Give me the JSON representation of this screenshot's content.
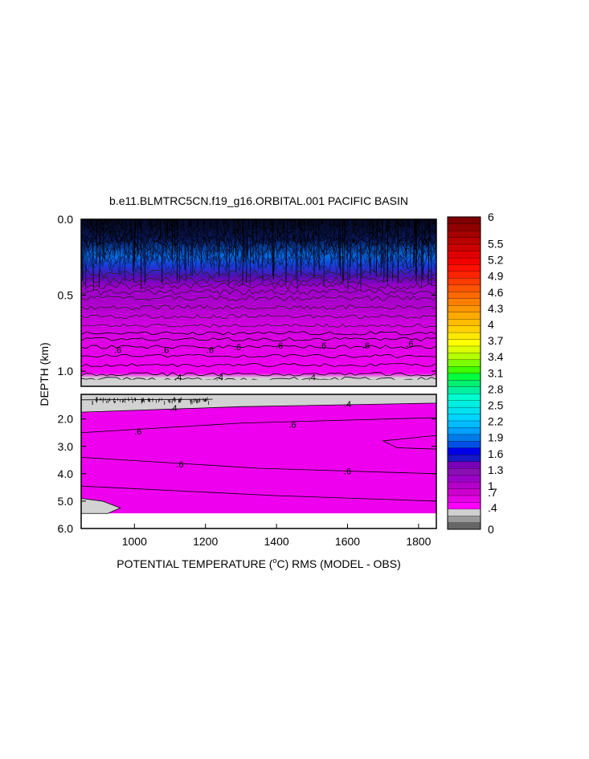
{
  "chart_data": {
    "type": "heatmap",
    "title": "b.e11.BLMTRC5CN.f19_g16.ORBITAL.001 PACIFIC BASIN",
    "xlabel_parts": [
      "POTENTIAL TEMPERATURE (",
      "o",
      "C) RMS (MODEL - OBS)"
    ],
    "ylabel": "DEPTH (km)",
    "x_range": [
      850,
      1850
    ],
    "x_ticks": [
      "1000",
      "1200",
      "1400",
      "1600",
      "1800"
    ],
    "x_tick_values": [
      1000,
      1200,
      1400,
      1600,
      1800
    ],
    "upper_panel": {
      "y_range": [
        0.0,
        1.1
      ],
      "y_ticks": [
        "0.0",
        "0.5",
        "1.0"
      ],
      "y_tick_values": [
        0.0,
        0.5,
        1.0
      ]
    },
    "lower_panel": {
      "y_range": [
        1.1,
        6.0
      ],
      "y_ticks": [
        "2.0",
        "3.0",
        "4.0",
        "5.0",
        "6.0"
      ],
      "y_tick_values": [
        2.0,
        3.0,
        4.0,
        5.0,
        6.0
      ]
    },
    "contour_labels_upper": [
      {
        "text": ".6",
        "x": 1087,
        "depth": 0.86
      },
      {
        "text": ".6",
        "x": 1213,
        "depth": 0.86
      },
      {
        "text": ".6",
        "x": 1290,
        "depth": 0.84
      },
      {
        "text": ".6",
        "x": 1408,
        "depth": 0.83
      },
      {
        "text": ".6",
        "x": 1530,
        "depth": 0.83
      },
      {
        "text": ".6",
        "x": 1652,
        "depth": 0.83
      },
      {
        "text": ".6",
        "x": 1775,
        "depth": 0.82
      },
      {
        "text": ".6",
        "x": 953,
        "depth": 0.86
      },
      {
        "text": ".4",
        "x": 1123,
        "depth": 1.04
      },
      {
        "text": ".4",
        "x": 1240,
        "depth": 1.04
      },
      {
        "text": ".4",
        "x": 1500,
        "depth": 1.04
      }
    ],
    "contour_labels_lower": [
      {
        "text": ".4",
        "x": 1110,
        "depth": 1.6
      },
      {
        "text": ".4",
        "x": 1600,
        "depth": 1.45
      },
      {
        "text": ".6",
        "x": 1010,
        "depth": 2.45
      },
      {
        "text": ".6",
        "x": 1445,
        "depth": 2.2
      },
      {
        "text": ".6",
        "x": 1128,
        "depth": 3.65
      },
      {
        "text": ".6",
        "x": 1600,
        "depth": 3.9
      }
    ],
    "colorbar": {
      "label_values": [
        "6",
        "5.5",
        "5.2",
        "4.9",
        "4.6",
        "4.3",
        "4",
        "3.7",
        "3.4",
        "3.1",
        "2.8",
        "2.5",
        "2.2",
        "1.9",
        "1.6",
        "1.3",
        "1",
        ".7",
        ".4",
        "0"
      ],
      "colors": [
        "#666666",
        "#9a9a9a",
        "#d0d0d0",
        "#ff00ff",
        "#e600e6",
        "#cc00cc",
        "#b400c8",
        "#9b00c8",
        "#8a10b4",
        "#7a00b8",
        "#1818c8",
        "#0000e8",
        "#0050e8",
        "#007ae8",
        "#00a0ff",
        "#00bcff",
        "#00d4ff",
        "#00e2ee",
        "#00efe0",
        "#00ffcf",
        "#00f0a0",
        "#00f070",
        "#00ff3c",
        "#40ff00",
        "#7cff00",
        "#b4ff00",
        "#dcff00",
        "#ffff00",
        "#ffe800",
        "#ffd200",
        "#ffbc00",
        "#ffaa00",
        "#ff9600",
        "#ff8000",
        "#ff6a00",
        "#ff5400",
        "#ff3c00",
        "#ff2400",
        "#ff1000",
        "#f20000",
        "#e00000",
        "#cc0000",
        "#b80000",
        "#a40000",
        "#900000",
        "#800000"
      ]
    },
    "field_colors": {
      "gray": "#d2d2d2",
      "magenta": "#ee00ee",
      "magenta_dark": "#d800d8",
      "purple": "#b000cc",
      "deep_purple": "#7010a8",
      "blue": "#2020d0",
      "bright_blue": "#0060f0",
      "cyan_blue": "#0090e0",
      "near_black": "#101030"
    }
  }
}
